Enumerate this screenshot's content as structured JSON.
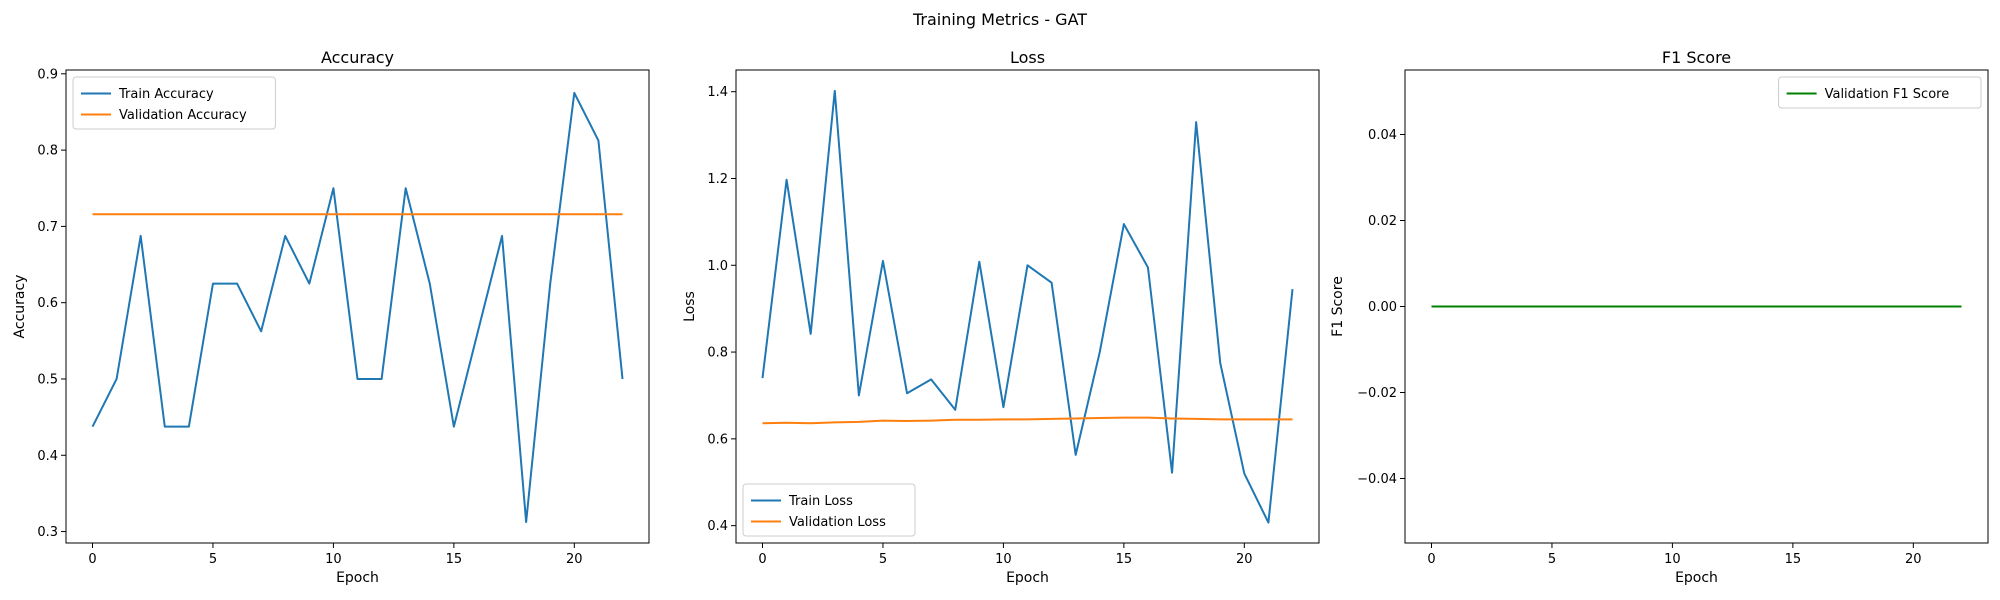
{
  "figure": {
    "suptitle": "Training Metrics - GAT"
  },
  "chart_data": [
    {
      "type": "line",
      "title": "Accuracy",
      "xlabel": "Epoch",
      "ylabel": "Accuracy",
      "xlim": [
        -1.1,
        23.1
      ],
      "ylim": [
        0.285,
        0.905
      ],
      "xticks": [
        0,
        5,
        10,
        15,
        20
      ],
      "yticks": [
        0.3,
        0.4,
        0.5,
        0.6,
        0.7,
        0.8,
        0.9
      ],
      "yticklabels": [
        "0.3",
        "0.4",
        "0.5",
        "0.6",
        "0.7",
        "0.8",
        "0.9"
      ],
      "legend_loc": "upper-left",
      "x": [
        0,
        1,
        2,
        3,
        4,
        5,
        6,
        7,
        8,
        9,
        10,
        11,
        12,
        13,
        14,
        15,
        16,
        17,
        18,
        19,
        20,
        21,
        22
      ],
      "series": [
        {
          "name": "Train Accuracy",
          "color": "#1f77b4",
          "values": [
            0.4375,
            0.5,
            0.6875,
            0.4375,
            0.4375,
            0.625,
            0.625,
            0.5625,
            0.6875,
            0.625,
            0.75,
            0.5,
            0.5,
            0.75,
            0.625,
            0.4375,
            0.5625,
            0.6875,
            0.3125,
            0.625,
            0.875,
            0.8125,
            0.5
          ]
        },
        {
          "name": "Validation Accuracy",
          "color": "#ff7f0e",
          "values": [
            0.716,
            0.716,
            0.716,
            0.716,
            0.716,
            0.716,
            0.716,
            0.716,
            0.716,
            0.716,
            0.716,
            0.716,
            0.716,
            0.716,
            0.716,
            0.716,
            0.716,
            0.716,
            0.716,
            0.716,
            0.716,
            0.716,
            0.716
          ]
        }
      ]
    },
    {
      "type": "line",
      "title": "Loss",
      "xlabel": "Epoch",
      "ylabel": "Loss",
      "xlim": [
        -1.1,
        23.1
      ],
      "ylim": [
        0.36,
        1.45
      ],
      "xticks": [
        0,
        5,
        10,
        15,
        20
      ],
      "yticks": [
        0.4,
        0.6,
        0.8,
        1.0,
        1.2,
        1.4
      ],
      "yticklabels": [
        "0.4",
        "0.6",
        "0.8",
        "1.0",
        "1.2",
        "1.4"
      ],
      "legend_loc": "lower-left",
      "x": [
        0,
        1,
        2,
        3,
        4,
        5,
        6,
        7,
        8,
        9,
        10,
        11,
        12,
        13,
        14,
        15,
        16,
        17,
        18,
        19,
        20,
        21,
        22
      ],
      "series": [
        {
          "name": "Train Loss",
          "color": "#1f77b4",
          "values": [
            0.74,
            1.197,
            0.842,
            1.402,
            0.7,
            1.01,
            0.705,
            0.737,
            0.667,
            1.008,
            0.673,
            1.0,
            0.96,
            0.563,
            0.8,
            1.095,
            0.995,
            0.522,
            1.33,
            0.775,
            0.52,
            0.407,
            0.945
          ]
        },
        {
          "name": "Validation Loss",
          "color": "#ff7f0e",
          "values": [
            0.636,
            0.637,
            0.636,
            0.638,
            0.639,
            0.642,
            0.641,
            0.642,
            0.644,
            0.644,
            0.645,
            0.645,
            0.646,
            0.647,
            0.648,
            0.649,
            0.649,
            0.647,
            0.646,
            0.645,
            0.645,
            0.645,
            0.645
          ]
        }
      ]
    },
    {
      "type": "line",
      "title": "F1 Score",
      "xlabel": "Epoch",
      "ylabel": "F1 Score",
      "xlim": [
        -1.1,
        23.1
      ],
      "ylim": [
        -0.055,
        0.055
      ],
      "xticks": [
        0,
        5,
        10,
        15,
        20
      ],
      "yticks": [
        -0.04,
        -0.02,
        0.0,
        0.02,
        0.04
      ],
      "yticklabels": [
        "−0.04",
        "−0.02",
        "0.00",
        "0.02",
        "0.04"
      ],
      "legend_loc": "upper-right",
      "x": [
        0,
        1,
        2,
        3,
        4,
        5,
        6,
        7,
        8,
        9,
        10,
        11,
        12,
        13,
        14,
        15,
        16,
        17,
        18,
        19,
        20,
        21,
        22
      ],
      "series": [
        {
          "name": "Validation F1 Score",
          "color": "#008000",
          "values": [
            0,
            0,
            0,
            0,
            0,
            0,
            0,
            0,
            0,
            0,
            0,
            0,
            0,
            0,
            0,
            0,
            0,
            0,
            0,
            0,
            0,
            0,
            0
          ]
        }
      ]
    }
  ]
}
